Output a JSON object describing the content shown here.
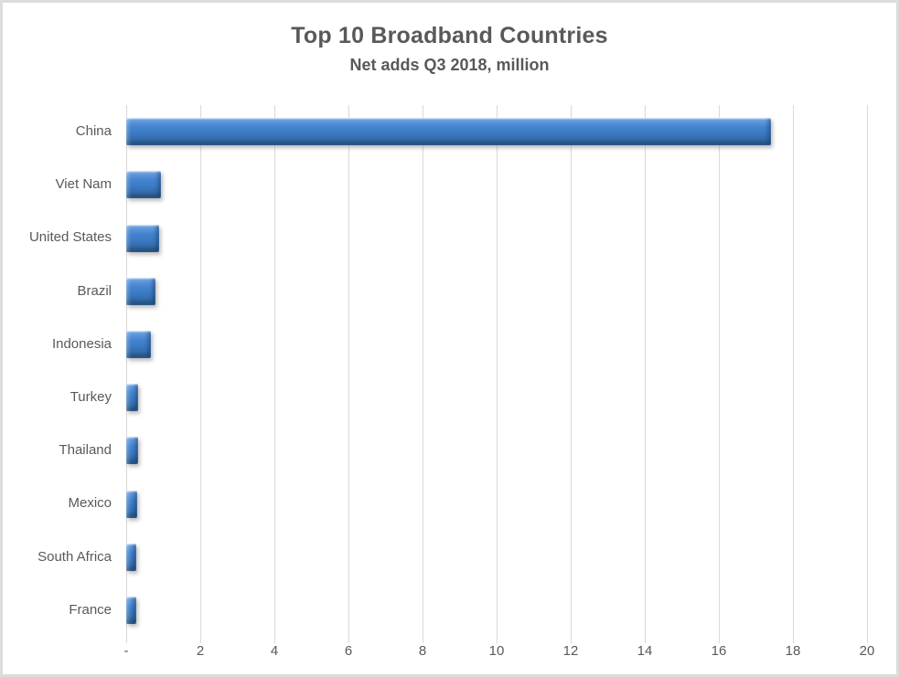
{
  "page": {
    "background": "#ffffff",
    "border_color": "#dcdcdc"
  },
  "chart_data": {
    "type": "bar",
    "orientation": "horizontal",
    "title": "Top 10 Broadband Countries",
    "subtitle": "Net adds Q3 2018, million",
    "categories": [
      "China",
      "Viet Nam",
      "United States",
      "Brazil",
      "Indonesia",
      "Turkey",
      "Thailand",
      "Mexico",
      "South Africa",
      "France"
    ],
    "values": [
      17.4,
      0.95,
      0.9,
      0.78,
      0.67,
      0.33,
      0.32,
      0.3,
      0.28,
      0.27
    ],
    "xlabel": "",
    "ylabel": "",
    "xlim": [
      0,
      20
    ],
    "x_tick_values": [
      0,
      2,
      4,
      6,
      8,
      10,
      12,
      14,
      16,
      18,
      20
    ],
    "x_tick_labels": [
      "-",
      "2",
      "4",
      "6",
      "8",
      "10",
      "12",
      "14",
      "16",
      "18",
      "20"
    ],
    "grid": true,
    "legend": false,
    "colors": {
      "bar_main": "#3e7ec9",
      "bar_highlight": "#a3c8ee",
      "bar_dark_edge": "#2a5a92",
      "gridline": "#d9d9d9",
      "text": "#595959"
    }
  }
}
